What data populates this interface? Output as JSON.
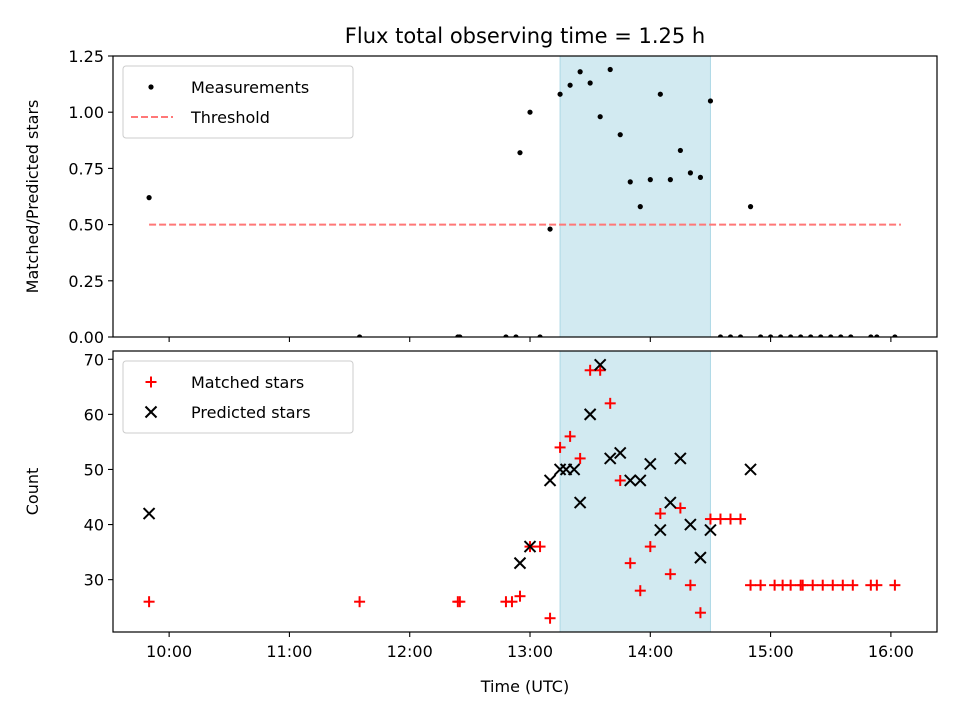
{
  "title": "Flux total observing time = 1.25 h",
  "chart_data": [
    {
      "type": "scatter",
      "ylabel": "Matched/Predicted stars",
      "xlabel": "",
      "xlim": [
        "09:32",
        "16:23"
      ],
      "ylim": [
        0,
        1.25
      ],
      "yticks": [
        "0.00",
        "0.25",
        "0.50",
        "0.75",
        "1.00",
        "1.25"
      ],
      "xticks": [
        "10:00",
        "11:00",
        "12:00",
        "13:00",
        "14:00",
        "15:00",
        "16:00"
      ],
      "show_xtick_labels": false,
      "legend_placement": "upper-left",
      "highlight_span": {
        "x": [
          "13:15",
          "14:30"
        ],
        "color": "#add8e6"
      },
      "threshold": {
        "name": "Threshold",
        "y": 0.5,
        "x": [
          "09:50",
          "16:05"
        ],
        "color": "#ff7777"
      },
      "series": [
        {
          "name": "Measurements",
          "marker": "dot",
          "color": "#000000",
          "points": [
            [
              "09:50",
              0.62
            ],
            [
              "11:35",
              0
            ],
            [
              "12:24",
              0
            ],
            [
              "12:25",
              0
            ],
            [
              "12:48",
              0
            ],
            [
              "12:53",
              0
            ],
            [
              "12:55",
              0.82
            ],
            [
              "13:00",
              1.0
            ],
            [
              "13:05",
              0
            ],
            [
              "13:10",
              0.48
            ],
            [
              "13:15",
              1.08
            ],
            [
              "13:20",
              1.12
            ],
            [
              "13:25",
              1.18
            ],
            [
              "13:30",
              1.13
            ],
            [
              "13:35",
              0.98
            ],
            [
              "13:40",
              1.19
            ],
            [
              "13:45",
              0.9
            ],
            [
              "13:50",
              0.69
            ],
            [
              "13:55",
              0.58
            ],
            [
              "14:00",
              0.7
            ],
            [
              "14:05",
              1.08
            ],
            [
              "14:10",
              0.7
            ],
            [
              "14:15",
              0.83
            ],
            [
              "14:20",
              0.73
            ],
            [
              "14:25",
              0.71
            ],
            [
              "14:30",
              1.05
            ],
            [
              "14:35",
              0
            ],
            [
              "14:40",
              0
            ],
            [
              "14:45",
              0
            ],
            [
              "14:50",
              0.58
            ],
            [
              "14:55",
              0
            ],
            [
              "15:00",
              0
            ],
            [
              "15:05",
              0
            ],
            [
              "15:10",
              0
            ],
            [
              "15:15",
              0
            ],
            [
              "15:20",
              0
            ],
            [
              "15:25",
              0
            ],
            [
              "15:30",
              0
            ],
            [
              "15:35",
              0
            ],
            [
              "15:40",
              0
            ],
            [
              "15:50",
              0
            ],
            [
              "15:53",
              0
            ],
            [
              "16:02",
              0
            ]
          ]
        }
      ]
    },
    {
      "type": "scatter",
      "ylabel": "Count",
      "xlabel": "Time (UTC)",
      "xlim": [
        "09:32",
        "16:23"
      ],
      "ylim": [
        20.5,
        71.5
      ],
      "yticks": [
        "30",
        "40",
        "50",
        "60",
        "70"
      ],
      "xticks": [
        "10:00",
        "11:00",
        "12:00",
        "13:00",
        "14:00",
        "15:00",
        "16:00"
      ],
      "legend_placement": "upper-left",
      "highlight_span": {
        "x": [
          "13:15",
          "14:30"
        ],
        "color": "#add8e6"
      },
      "series": [
        {
          "name": "Matched stars",
          "marker": "plus",
          "color": "#ff0000",
          "points": [
            [
              "09:50",
              26
            ],
            [
              "11:35",
              26
            ],
            [
              "12:24",
              26
            ],
            [
              "12:25",
              26
            ],
            [
              "12:48",
              26
            ],
            [
              "12:51",
              26
            ],
            [
              "12:55",
              27
            ],
            [
              "13:00",
              36
            ],
            [
              "13:05",
              36
            ],
            [
              "13:10",
              23
            ],
            [
              "13:15",
              54
            ],
            [
              "13:20",
              56
            ],
            [
              "13:25",
              52
            ],
            [
              "13:30",
              68
            ],
            [
              "13:35",
              68
            ],
            [
              "13:40",
              62
            ],
            [
              "13:45",
              48
            ],
            [
              "13:50",
              33
            ],
            [
              "13:55",
              28
            ],
            [
              "14:00",
              36
            ],
            [
              "14:05",
              42
            ],
            [
              "14:10",
              31
            ],
            [
              "14:15",
              43
            ],
            [
              "14:20",
              29
            ],
            [
              "14:25",
              24
            ],
            [
              "14:30",
              41
            ],
            [
              "14:35",
              41
            ],
            [
              "14:40",
              41
            ],
            [
              "14:45",
              41
            ],
            [
              "14:50",
              29
            ],
            [
              "14:55",
              29
            ],
            [
              "15:02",
              29
            ],
            [
              "15:06",
              29
            ],
            [
              "15:10",
              29
            ],
            [
              "15:15",
              29
            ],
            [
              "15:16",
              29
            ],
            [
              "15:21",
              29
            ],
            [
              "15:26",
              29
            ],
            [
              "15:31",
              29
            ],
            [
              "15:36",
              29
            ],
            [
              "15:41",
              29
            ],
            [
              "15:50",
              29
            ],
            [
              "15:53",
              29
            ],
            [
              "16:02",
              29
            ]
          ]
        },
        {
          "name": "Predicted stars",
          "marker": "x",
          "color": "#000000",
          "points": [
            [
              "09:50",
              42
            ],
            [
              "12:55",
              33
            ],
            [
              "13:00",
              36
            ],
            [
              "13:10",
              48
            ],
            [
              "13:15",
              50
            ],
            [
              "13:18",
              50
            ],
            [
              "13:22",
              50
            ],
            [
              "13:25",
              44
            ],
            [
              "13:30",
              60
            ],
            [
              "13:35",
              69
            ],
            [
              "13:40",
              52
            ],
            [
              "13:45",
              53
            ],
            [
              "13:50",
              48
            ],
            [
              "13:55",
              48
            ],
            [
              "14:00",
              51
            ],
            [
              "14:05",
              39
            ],
            [
              "14:10",
              44
            ],
            [
              "14:15",
              52
            ],
            [
              "14:20",
              40
            ],
            [
              "14:25",
              34
            ],
            [
              "14:30",
              39
            ],
            [
              "14:50",
              50
            ]
          ]
        }
      ]
    }
  ]
}
